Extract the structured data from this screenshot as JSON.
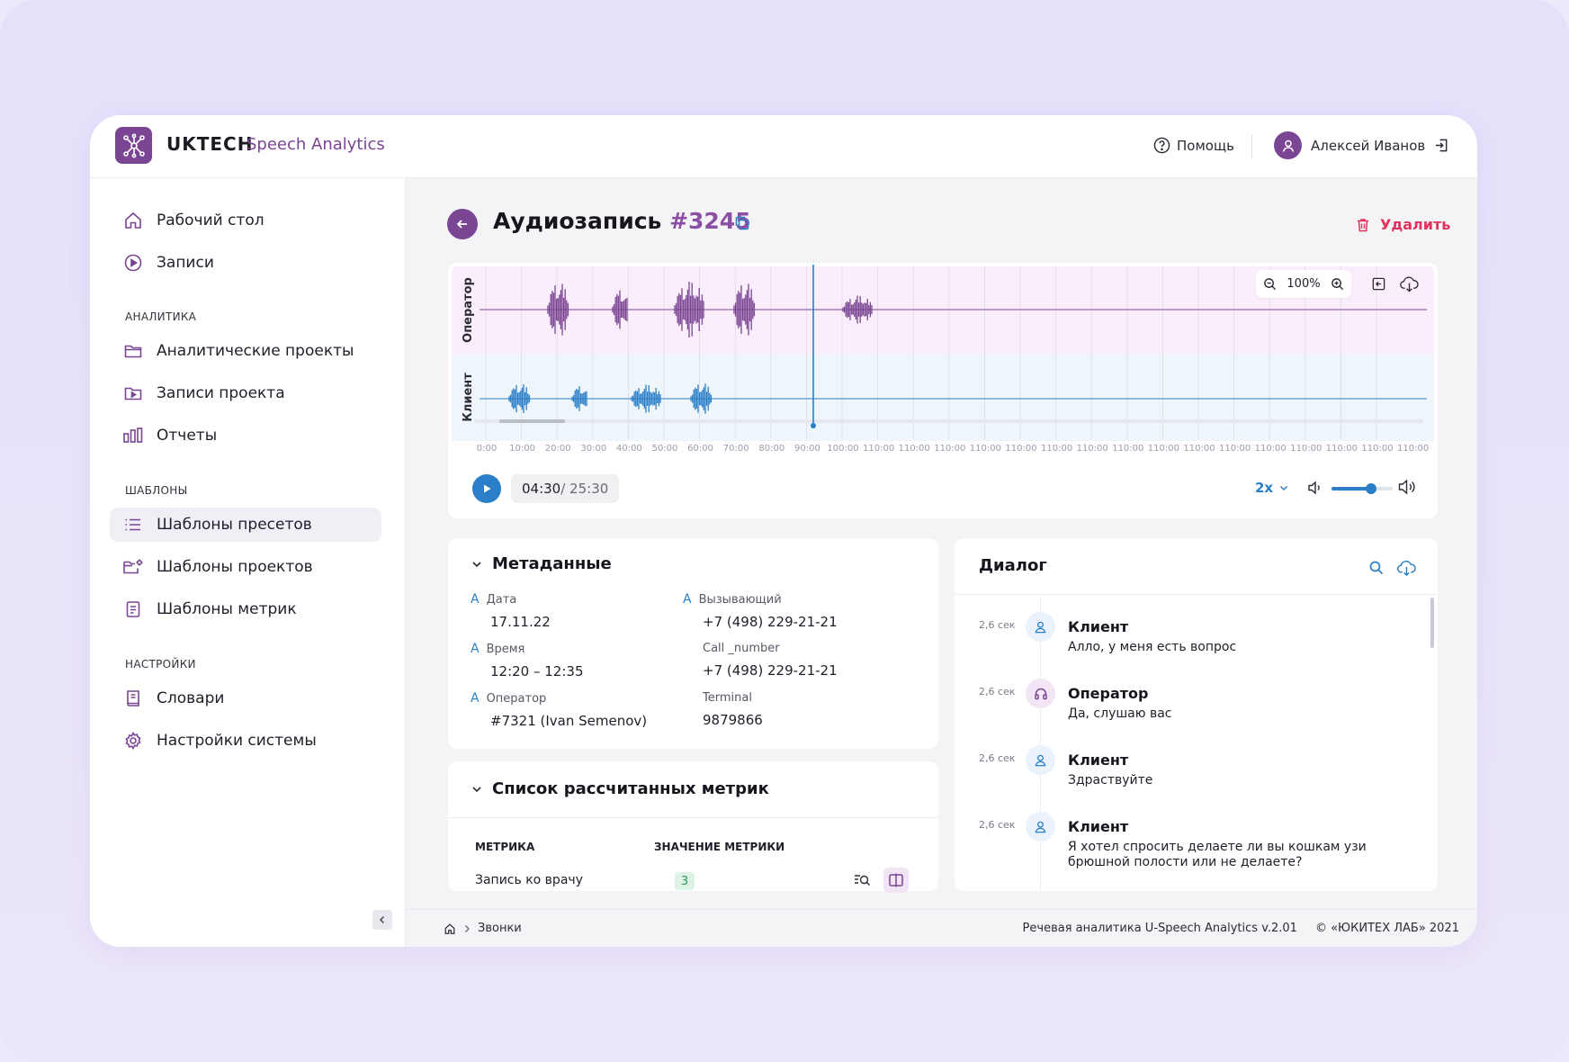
{
  "app": {
    "brand": "UKTECH",
    "product": "Speech Analytics"
  },
  "header": {
    "help_label": "Помощь",
    "user_name": "Алексей Иванов"
  },
  "sidebar": {
    "items": [
      {
        "label": "Рабочий стол",
        "icon": "home-icon"
      },
      {
        "label": "Записи",
        "icon": "play-circle-icon"
      }
    ],
    "sections": [
      {
        "title": "АНАЛИТИКА",
        "items": [
          {
            "label": "Аналитические проекты",
            "icon": "folder-icon"
          },
          {
            "label": "Записи проекта",
            "icon": "folder-play-icon"
          },
          {
            "label": "Отчеты",
            "icon": "bar-chart-icon"
          }
        ]
      },
      {
        "title": "ШАБЛОНЫ",
        "items": [
          {
            "label": "Шаблоны пресетов",
            "icon": "list-icon",
            "active": true
          },
          {
            "label": "Шаблоны проектов",
            "icon": "folder-gear-icon"
          },
          {
            "label": "Шаблоны метрик",
            "icon": "clipboard-icon"
          }
        ]
      },
      {
        "title": "НАСТРОЙКИ",
        "items": [
          {
            "label": "Словари",
            "icon": "book-icon"
          },
          {
            "label": "Настройки системы",
            "icon": "gear-icon"
          }
        ]
      }
    ]
  },
  "page": {
    "title": "Аудиозапись",
    "record_id": "#3245",
    "delete_label": "Удалить"
  },
  "player": {
    "tracks": [
      {
        "label": "Оператор",
        "color": "#7a4592"
      },
      {
        "label": "Клиент",
        "color": "#2a7fc8"
      }
    ],
    "zoom": "100%",
    "ticks": [
      "0:00",
      "10:00",
      "20:00",
      "30:00",
      "40:00",
      "50:00",
      "60:00",
      "70:00",
      "80:00",
      "90:00",
      "100:00",
      "110:00",
      "110:00",
      "110:00",
      "110:00",
      "110:00",
      "110:00",
      "110:00",
      "110:00",
      "110:00",
      "110:00",
      "110:00",
      "110:00",
      "110:00",
      "110:00",
      "110:00",
      "110:00"
    ],
    "current_time": "04:30",
    "total_time": "/ 25:30",
    "speed": "2x",
    "volume": 0.65
  },
  "metadata": {
    "title": "Метаданные",
    "fields": [
      {
        "label": "Дата",
        "value": "17.11.22",
        "marked": true
      },
      {
        "label": "Вызывающий",
        "value": "+7 (498) 229-21-21",
        "marked": true
      },
      {
        "label": "Время",
        "value": "12:20 – 12:35",
        "marked": true
      },
      {
        "label": "Call _number",
        "value": "+7 (498) 229-21-21",
        "marked": false
      },
      {
        "label": "Оператор",
        "value": "#7321 (Ivan Semenov)",
        "marked": true
      },
      {
        "label": "Terminal",
        "value": "9879866",
        "marked": false
      }
    ],
    "marker": "A"
  },
  "metrics": {
    "title": "Список рассчитанных метрик",
    "columns": [
      "МЕТРИКА",
      "ЗНАЧЕНИЕ МЕТРИКИ"
    ],
    "rows": [
      {
        "name": "Запись ко врачу",
        "value": "3"
      }
    ]
  },
  "dialog": {
    "title": "Диалог",
    "messages": [
      {
        "time": "2,6 сек",
        "speaker": "Клиент",
        "role": "client",
        "text": "Алло, у меня есть вопрос"
      },
      {
        "time": "2,6 сек",
        "speaker": "Оператор",
        "role": "operator",
        "text": "Да, слушаю вас"
      },
      {
        "time": "2,6 сек",
        "speaker": "Клиент",
        "role": "client",
        "text": "Здраствуйте"
      },
      {
        "time": "2,6 сек",
        "speaker": "Клиент",
        "role": "client",
        "text": "Я хотел спросить делаете ли вы кошкам узи брюшной полости или не делаете?"
      }
    ]
  },
  "footer": {
    "breadcrumb": "Звонки",
    "version": "Речевая аналитика U-Speech Analytics v.2.01",
    "copyright": "© «ЮКИТЕХ ЛАБ» 2021"
  },
  "colors": {
    "brand": "#7a4592",
    "accent": "#2a7fc8",
    "danger": "#e0335d",
    "badge_bg": "#dcf3e5"
  }
}
